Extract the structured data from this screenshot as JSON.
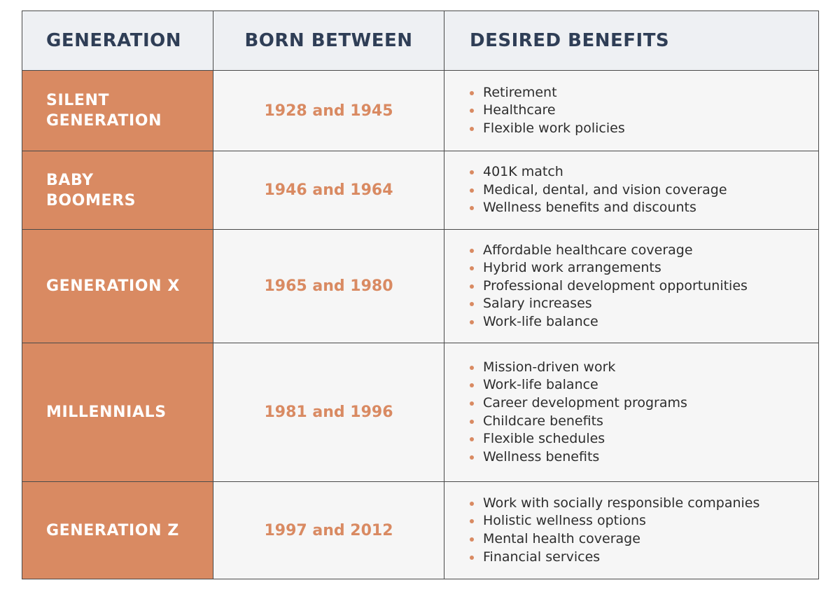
{
  "header": {
    "generation": "GENERATION",
    "born_between": "BORN BETWEEN",
    "desired_benefits": "DESIRED BENEFITS"
  },
  "colors": {
    "accent": "#d98a62",
    "header_bg": "#eef0f3",
    "header_text": "#2f3e56",
    "cell_bg": "#f6f6f6"
  },
  "rows": [
    {
      "generation": [
        "SILENT",
        "GENERATION"
      ],
      "born": "1928 and 1945",
      "benefits": [
        "Retirement",
        "Healthcare",
        "Flexible work policies"
      ]
    },
    {
      "generation": [
        "BABY",
        "BOOMERS"
      ],
      "born": "1946 and 1964",
      "benefits": [
        "401K match",
        "Medical, dental, and vision coverage",
        "Wellness benefits and discounts"
      ]
    },
    {
      "generation": [
        "GENERATION X"
      ],
      "born": "1965 and 1980",
      "benefits": [
        "Affordable healthcare coverage",
        "Hybrid work arrangements",
        "Professional development opportunities",
        "Salary increases",
        "Work-life balance"
      ]
    },
    {
      "generation": [
        "MILLENNIALS"
      ],
      "born": "1981 and 1996",
      "benefits": [
        "Mission-driven work",
        "Work-life balance",
        "Career development programs",
        "Childcare benefits",
        "Flexible schedules",
        "Wellness benefits"
      ]
    },
    {
      "generation": [
        "GENERATION Z"
      ],
      "born": "1997 and 2012",
      "benefits": [
        "Work with socially responsible companies",
        "Holistic wellness options",
        "Mental health coverage",
        "Financial services"
      ]
    }
  ]
}
